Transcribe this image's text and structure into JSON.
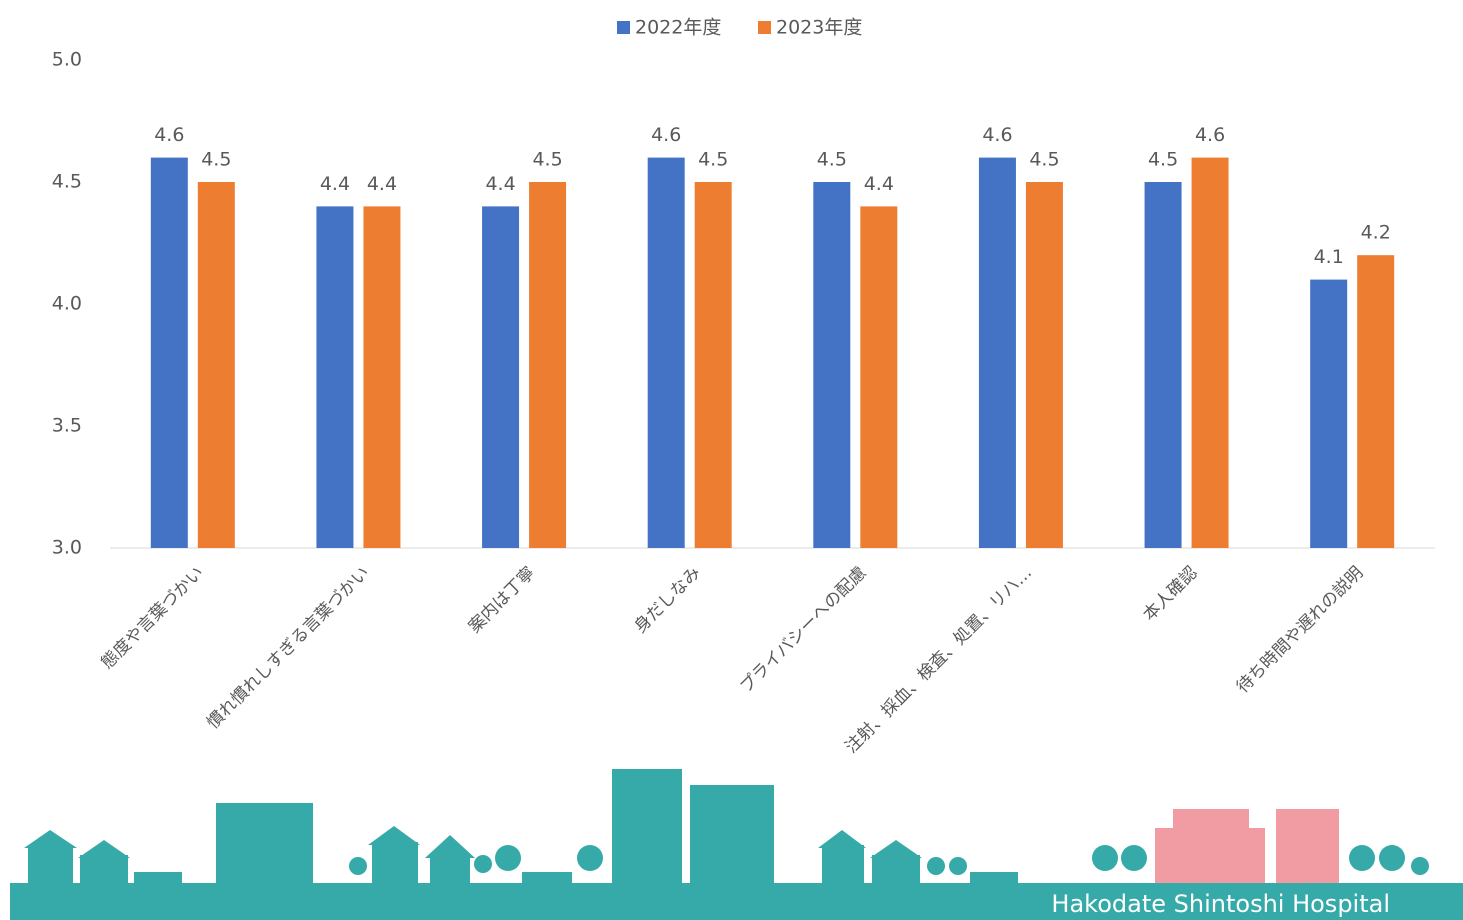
{
  "chart_data": {
    "type": "bar",
    "categories": [
      "態度や言葉づかい",
      "慣れ慣れしすぎる言葉づかい",
      "案内は丁寧",
      "身だしなみ",
      "プライバシーへの配慮",
      "注射、採血、検査、処置、リハ…",
      "本人確認",
      "待ち時間や遅れの説明"
    ],
    "series": [
      {
        "name": "2022年度",
        "color": "#4472c4",
        "values": [
          4.6,
          4.4,
          4.4,
          4.6,
          4.5,
          4.6,
          4.5,
          4.1
        ]
      },
      {
        "name": "2023年度",
        "color": "#ed7d31",
        "values": [
          4.5,
          4.4,
          4.5,
          4.5,
          4.4,
          4.5,
          4.6,
          4.2
        ]
      }
    ],
    "ylim": [
      3,
      5
    ],
    "yticks": [
      {
        "value": 3,
        "label": "3.0"
      },
      {
        "value": 3.5,
        "label": "3.5"
      },
      {
        "value": 4,
        "label": "4.0"
      },
      {
        "value": 4.5,
        "label": "4.5"
      },
      {
        "value": 5,
        "label": "5.0"
      }
    ],
    "grid": false,
    "legend": "top"
  },
  "footer": {
    "label": "Hakodate Shintoshi Hospital"
  }
}
